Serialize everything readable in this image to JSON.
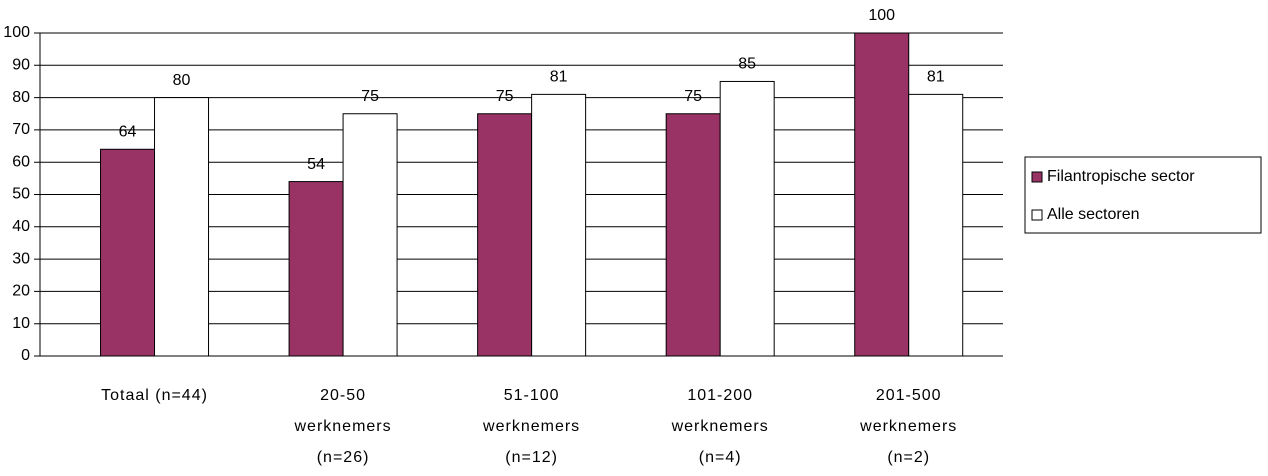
{
  "chart_data": {
    "type": "bar",
    "categories": [
      [
        "Totaal (n=44)"
      ],
      [
        "20-50",
        "werknemers",
        "(n=26)"
      ],
      [
        "51-100",
        "werknemers",
        "(n=12)"
      ],
      [
        "101-200",
        "werknemers",
        "(n=4)"
      ],
      [
        "201-500",
        "werknemers",
        "(n=2)"
      ]
    ],
    "series": [
      {
        "name": "Filantropische sector",
        "color": "#993366",
        "values": [
          64,
          54,
          75,
          75,
          100
        ]
      },
      {
        "name": "Alle sectoren",
        "color": "#ffffff",
        "values": [
          80,
          75,
          81,
          85,
          81
        ]
      }
    ],
    "ylim": [
      0,
      100
    ],
    "yticks": [
      0,
      10,
      20,
      30,
      40,
      50,
      60,
      70,
      80,
      90,
      100
    ],
    "grid": true,
    "legend": "right"
  }
}
